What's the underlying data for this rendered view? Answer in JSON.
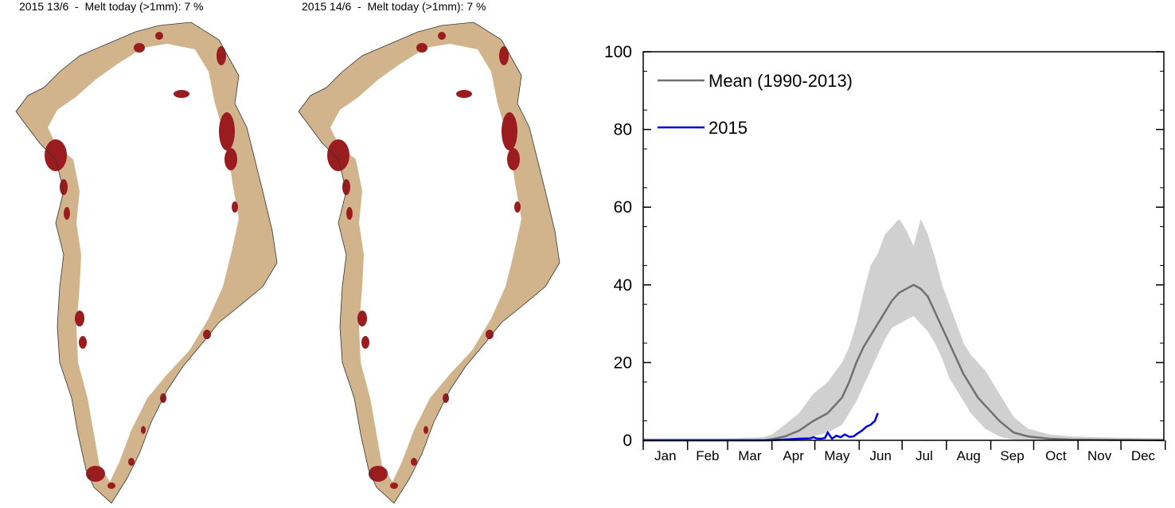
{
  "maps": [
    {
      "title": "2015 13/6  -  Melt today (>1mm): 7 %"
    },
    {
      "title": "2015 14/6  -  Melt today (>1mm): 7 %"
    }
  ],
  "colors": {
    "ice": "#ffffff",
    "land": "#d2b48c",
    "melt": "#9b1c1f",
    "coast": "#333333",
    "mean_line": "#707070",
    "range_band": "#d0d0d0",
    "line_2015": "#0000dd"
  },
  "chart_data": {
    "type": "line",
    "title": "",
    "xlabel": "",
    "ylabel": "",
    "ylim": [
      0,
      100
    ],
    "yticks": [
      0,
      20,
      40,
      60,
      80,
      100
    ],
    "xlim": [
      1,
      365
    ],
    "months": [
      "Jan",
      "Feb",
      "Mar",
      "Apr",
      "May",
      "Jun",
      "Jul",
      "Aug",
      "Sep",
      "Oct",
      "Nov",
      "Dec"
    ],
    "legend_position": "top-left",
    "series": [
      {
        "name": "Mean (1990-2013)",
        "x": [
          1,
          30,
          60,
          85,
          91,
          100,
          110,
          120,
          130,
          140,
          145,
          150,
          155,
          160,
          165,
          170,
          175,
          180,
          185,
          190,
          195,
          200,
          205,
          210,
          215,
          220,
          225,
          230,
          235,
          240,
          245,
          250,
          255,
          260,
          270,
          285,
          300,
          330,
          365
        ],
        "y": [
          0,
          0,
          0,
          0,
          0.3,
          1,
          2.5,
          5,
          7,
          11,
          15,
          20,
          24,
          27,
          30,
          33,
          36,
          38,
          39,
          40,
          39,
          37,
          33,
          29,
          25,
          21,
          17,
          14,
          11,
          9,
          7,
          5,
          3.5,
          2,
          1,
          0.4,
          0.2,
          0.1,
          0
        ]
      },
      {
        "name": "2015",
        "x": [
          1,
          30,
          60,
          90,
          100,
          110,
          118,
          120,
          122,
          125,
          128,
          130,
          133,
          136,
          139,
          142,
          145,
          148,
          151,
          154,
          157,
          160,
          163,
          165
        ],
        "y": [
          0,
          0,
          0,
          0,
          0.2,
          0.4,
          0.5,
          0.8,
          0.5,
          0.4,
          0.6,
          2,
          0.4,
          1.2,
          0.8,
          1.5,
          0.9,
          1,
          1.8,
          2.5,
          3.5,
          4,
          5,
          7
        ]
      }
    ],
    "range_band": {
      "x": [
        1,
        30,
        60,
        85,
        91,
        100,
        110,
        120,
        130,
        140,
        145,
        150,
        155,
        160,
        165,
        170,
        175,
        180,
        185,
        190,
        195,
        200,
        205,
        210,
        215,
        220,
        225,
        230,
        235,
        240,
        245,
        250,
        255,
        260,
        270,
        285,
        300,
        330,
        365
      ],
      "lower": [
        0,
        0,
        0,
        0,
        0,
        0.1,
        0.3,
        1,
        2,
        4,
        7,
        10,
        14,
        18,
        22,
        26,
        29,
        30,
        31,
        32,
        30,
        28,
        25,
        21,
        16,
        13,
        10,
        7,
        5,
        3,
        2,
        1,
        0.5,
        0.2,
        0,
        0,
        0,
        0,
        0
      ],
      "upper": [
        0.5,
        0.5,
        0.5,
        0.8,
        1.5,
        4,
        7,
        12,
        15,
        20,
        24,
        30,
        38,
        45,
        48,
        53,
        55,
        57,
        54,
        50,
        57,
        53,
        47,
        40,
        35,
        30,
        25,
        22,
        20,
        18,
        15,
        12,
        9,
        6,
        3,
        1.5,
        1,
        0.7,
        0.5
      ]
    }
  }
}
